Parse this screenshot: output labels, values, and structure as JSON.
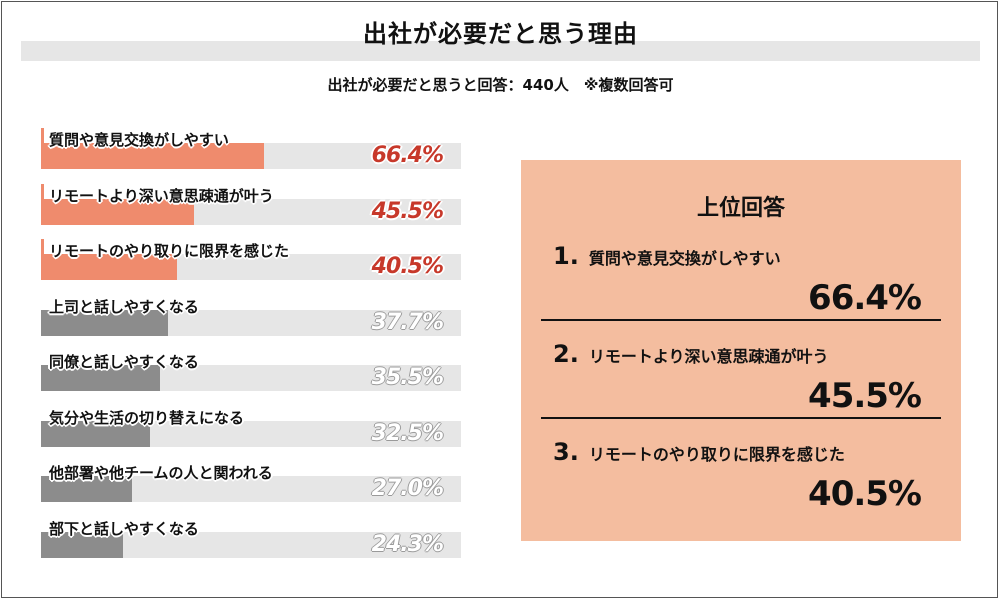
{
  "title": "出社が必要だと思う理由",
  "subtitle": "出社が必要だと思うと回答：440人　※複数回答可",
  "colors": {
    "top3": "#ef8b6d",
    "others": "#8c8c8c",
    "track": "#e6e6e6",
    "panel": "#f4bd9f",
    "top_value": "#c7382a"
  },
  "chart_data": {
    "type": "bar",
    "orientation": "horizontal",
    "title": "出社が必要だと思う理由",
    "subtitle": "出社が必要だと思うと回答：440人　※複数回答可",
    "xlim": [
      0,
      100
    ],
    "unit": "%",
    "categories": [
      "質問や意見交換がしやすい",
      "リモートより深い意思疎通が叶う",
      "リモートのやり取りに限界を感じた",
      "上司と話しやすくなる",
      "同僚と話しやすくなる",
      "気分や生活の切り替えになる",
      "他部署や他チームの人と関われる",
      "部下と話しやすくなる"
    ],
    "values": [
      66.4,
      45.5,
      40.5,
      37.7,
      35.5,
      32.5,
      27.0,
      24.3
    ],
    "value_labels": [
      "66.4%",
      "45.5%",
      "40.5%",
      "37.7%",
      "35.5%",
      "32.5%",
      "27.0%",
      "24.3%"
    ],
    "highlighted_top": 3
  },
  "top_panel": {
    "title": "上位回答",
    "items": [
      {
        "rank": "1.",
        "label": "質問や意見交換がしやすい",
        "value": "66.4%"
      },
      {
        "rank": "2.",
        "label": "リモートより深い意思疎通が叶う",
        "value": "45.5%"
      },
      {
        "rank": "3.",
        "label": "リモートのやり取りに限界を感じた",
        "value": "40.5%"
      }
    ]
  }
}
